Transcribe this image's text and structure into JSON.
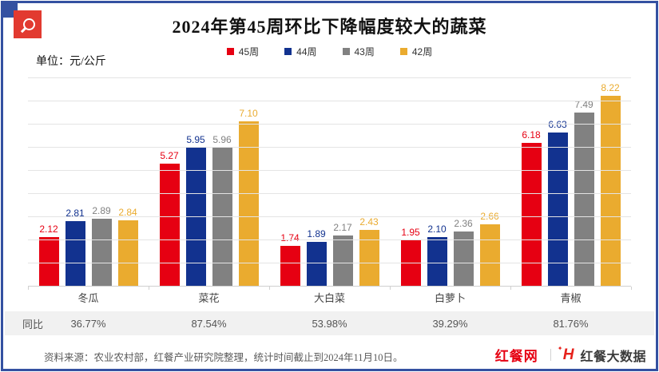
{
  "page": {
    "title": "2024年第45周环比下降幅度较大的蔬菜",
    "unit_label": "单位：元/公斤",
    "yoy_label": "同比",
    "source_note": "资料来源：农业农村部，红餐产业研究院整理，统计时间截止到2024年11月10日。"
  },
  "branding": {
    "logo_left": "红餐网",
    "divider": "｜",
    "icon_letter": "H",
    "logo_right": "红餐大数据",
    "brand_red": "#e60012"
  },
  "icons": {
    "search_badge": "magnifier-icon"
  },
  "colors": {
    "frame_blue": "#3451a1",
    "badge_red": "#e23a30",
    "gridline": "#e4e4e4",
    "yoy_band_bg": "#f1f1f1"
  },
  "chart_data": {
    "type": "bar",
    "title": "2024年第45周环比下降幅度较大的蔬菜",
    "unit": "元/公斤",
    "categories": [
      "冬瓜",
      "菜花",
      "大白菜",
      "白萝卜",
      "青椒"
    ],
    "series": [
      {
        "name": "45周",
        "color": "#e60012",
        "values": [
          2.12,
          5.27,
          1.74,
          1.95,
          6.18
        ],
        "labels": [
          "2.12",
          "5.27",
          "1.74",
          "1.95",
          "6.18"
        ]
      },
      {
        "name": "44周",
        "color": "#12328f",
        "values": [
          2.81,
          5.95,
          1.89,
          2.1,
          6.63
        ],
        "labels": [
          "2.81",
          "5.95",
          "1.89",
          "2.10",
          "6.63"
        ]
      },
      {
        "name": "43周",
        "color": "#818181",
        "values": [
          2.89,
          5.96,
          2.17,
          2.36,
          7.49
        ],
        "labels": [
          "2.89",
          "5.96",
          "2.17",
          "2.36",
          "7.49"
        ]
      },
      {
        "name": "42周",
        "color": "#eaab2f",
        "values": [
          2.84,
          7.1,
          2.43,
          2.66,
          8.22
        ],
        "labels": [
          "2.84",
          "7.10",
          "2.43",
          "2.66",
          "8.22"
        ]
      }
    ],
    "yoy": {
      "label": "同比",
      "values": [
        "36.77%",
        "87.54%",
        "53.98%",
        "39.29%",
        "81.76%"
      ]
    },
    "ylim": [
      0,
      9
    ],
    "grid": true,
    "legend_position": "top",
    "value_labels": true
  }
}
